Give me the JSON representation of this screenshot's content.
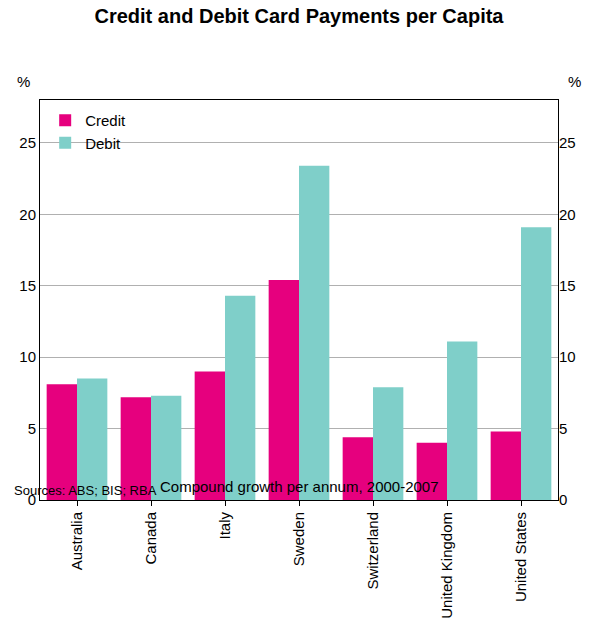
{
  "chart_data": {
    "type": "bar",
    "title": "Credit and Debit Card Payments per Capita",
    "subtitle": "Compound growth per annum, 2000-2007",
    "y_label": "%",
    "categories": [
      "Australia",
      "Canada",
      "Italy",
      "Sweden",
      "Switzerland",
      "United Kingdom",
      "United States"
    ],
    "series": [
      {
        "name": "Credit",
        "color": "#e6007e",
        "values": [
          8.1,
          7.2,
          9.0,
          15.4,
          4.4,
          4.0,
          4.8
        ]
      },
      {
        "name": "Debit",
        "color": "#7fcfc9",
        "values": [
          8.5,
          7.3,
          14.3,
          23.4,
          7.9,
          11.1,
          19.1
        ]
      }
    ],
    "ylim": [
      0,
      28
    ],
    "yticks": [
      0,
      5,
      10,
      15,
      20,
      25
    ],
    "grid": true,
    "legend": "top left",
    "data_labels": false,
    "annotations": [
      "Sources: ABS; BIS; RBA"
    ]
  }
}
